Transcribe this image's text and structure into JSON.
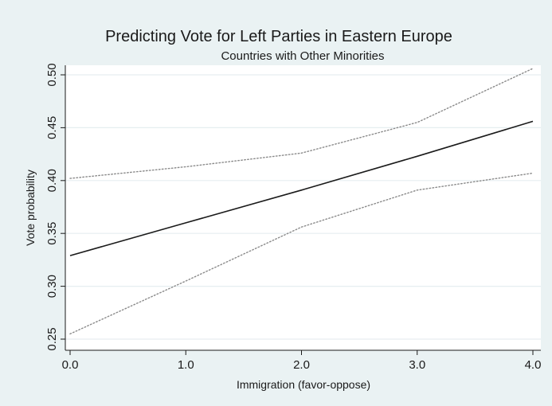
{
  "chart_data": {
    "type": "line",
    "title": "Predicting Vote for Left Parties in Eastern Europe",
    "subtitle": "Countries with Other Minorities",
    "xlabel": "Immigration (favor-oppose)",
    "ylabel": "Vote probability",
    "xlim": [
      0,
      4
    ],
    "ylim": [
      0.25,
      0.5
    ],
    "x_ticks": [
      "0.0",
      "1.0",
      "2.0",
      "3.0",
      "4.0"
    ],
    "x_tick_values": [
      0,
      1,
      2,
      3,
      4
    ],
    "y_ticks": [
      "0.25",
      "0.30",
      "0.35",
      "0.40",
      "0.45",
      "0.50"
    ],
    "y_tick_values": [
      0.25,
      0.3,
      0.35,
      0.4,
      0.45,
      0.5
    ],
    "grid": true,
    "series": [
      {
        "role": "estimate",
        "style": "solid",
        "color": "#1a1a1a",
        "x": [
          0,
          1,
          2,
          3,
          4
        ],
        "y": [
          0.329,
          0.36,
          0.391,
          0.423,
          0.456
        ]
      },
      {
        "role": "upper-bound",
        "style": "dotted",
        "color": "#8a8a8a",
        "x": [
          0,
          1,
          2,
          3,
          4
        ],
        "y": [
          0.402,
          0.413,
          0.426,
          0.455,
          0.506
        ]
      },
      {
        "role": "lower-bound",
        "style": "dotted",
        "color": "#8a8a8a",
        "x": [
          0,
          1,
          2,
          3,
          4
        ],
        "y": [
          0.255,
          0.305,
          0.356,
          0.391,
          0.407
        ]
      }
    ]
  },
  "colors": {
    "background": "#eaf2f3",
    "plot_area": "#ffffff",
    "grid": "#e6eef0",
    "axis": "#1a1a1a"
  }
}
